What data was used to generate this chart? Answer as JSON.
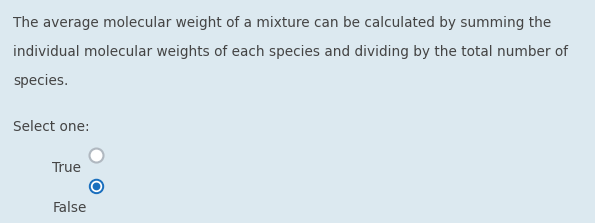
{
  "background_color": "#dce9f0",
  "question_text_lines": [
    "The average molecular weight of a mixture can be calculated by summing the",
    "individual molecular weights of each species and dividing by the total number of",
    "species."
  ],
  "select_label": "Select one:",
  "options": [
    "True",
    "False"
  ],
  "selected_index": 1,
  "text_color": "#444444",
  "option_text_color": "#444444",
  "radio_unselected_color": "#b0b8c0",
  "radio_selected_fill": "#1a6fbe",
  "radio_selected_border": "#1a6fbe",
  "font_size_question": 9.8,
  "font_size_options": 9.8,
  "figwidth": 5.95,
  "figheight": 2.23,
  "dpi": 100
}
